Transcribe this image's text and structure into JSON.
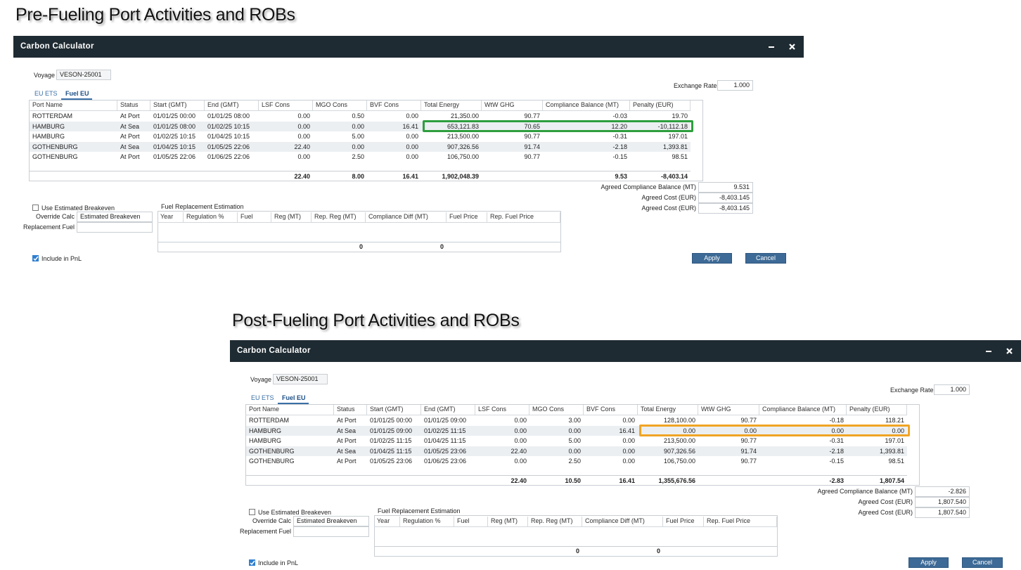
{
  "panels": [
    {
      "heading": "Pre-Fueling Port Activities and ROBs",
      "window_title": "Carbon Calculator",
      "voyage_label": "Voyage",
      "voyage": "VESON-25001",
      "exchange_rate_label": "Exchange Rate",
      "exchange_rate": "1.000",
      "tabs": [
        "EU ETS",
        "Fuel EU"
      ],
      "table": {
        "columns": [
          "Port Name",
          "Status",
          "Start (GMT)",
          "End (GMT)",
          "LSF Cons",
          "MGO Cons",
          "BVF Cons",
          "Total Energy",
          "WtW GHG",
          "Compliance Balance (MT)",
          "Penalty (EUR)"
        ],
        "rows": [
          [
            "ROTTERDAM",
            "At Port",
            "01/01/25 00:00",
            "01/01/25 08:00",
            "0.00",
            "0.50",
            "0.00",
            "21,350.00",
            "90.77",
            "-0.03",
            "19.70"
          ],
          [
            "HAMBURG",
            "At Sea",
            "01/01/25 08:00",
            "01/02/25 10:15",
            "0.00",
            "0.00",
            "16.41",
            "653,121.83",
            "70.65",
            "12.20",
            "-10,112.18"
          ],
          [
            "HAMBURG",
            "At Port",
            "01/02/25 10:15",
            "01/04/25 10:15",
            "0.00",
            "5.00",
            "0.00",
            "213,500.00",
            "90.77",
            "-0.31",
            "197.01"
          ],
          [
            "GOTHENBURG",
            "At Sea",
            "01/04/25 10:15",
            "01/05/25 22:06",
            "22.40",
            "0.00",
            "0.00",
            "907,326.56",
            "91.74",
            "-2.18",
            "1,393.81"
          ],
          [
            "GOTHENBURG",
            "At Port",
            "01/05/25 22:06",
            "01/06/25 22:06",
            "0.00",
            "2.50",
            "0.00",
            "106,750.00",
            "90.77",
            "-0.15",
            "98.51"
          ]
        ],
        "totals": [
          null,
          null,
          null,
          null,
          "22.40",
          "8.00",
          "16.41",
          "1,902,048.39",
          null,
          "9.53",
          "-8,403.14"
        ]
      },
      "highlight_color": "#2e9e3e",
      "agreed": [
        {
          "label": "Agreed Compliance Balance (MT)",
          "value": "9.531"
        },
        {
          "label": "Agreed Cost (EUR)",
          "value": "-8,403.145"
        },
        {
          "label": "Agreed Cost (EUR)",
          "value": "-8,403.145"
        }
      ],
      "use_estimated_breakeven": "Use Estimated Breakeven",
      "override_calc_label": "Override Calc",
      "override_calc": "Estimated Breakeven",
      "replacement_fuel_label": "Replacement Fuel",
      "fuel_replacement": {
        "title": "Fuel Replacement Estimation",
        "columns": [
          "Year",
          "Regulation %",
          "Fuel",
          "Reg (MT)",
          "Rep. Reg (MT)",
          "Compliance Diff (MT)",
          "Fuel Price",
          "Rep. Fuel Price"
        ],
        "totals": [
          null,
          null,
          null,
          null,
          "0",
          "0",
          null,
          null
        ]
      },
      "include_pnl": "Include in PnL",
      "buttons": [
        "Apply",
        "Cancel"
      ]
    },
    {
      "heading": "Post-Fueling Port Activities and ROBs",
      "window_title": "Carbon Calculator",
      "voyage_label": "Voyage",
      "voyage": "VESON-25001",
      "exchange_rate_label": "Exchange Rate",
      "exchange_rate": "1.000",
      "tabs": [
        "EU ETS",
        "Fuel EU"
      ],
      "table": {
        "columns": [
          "Port Name",
          "Status",
          "Start (GMT)",
          "End (GMT)",
          "LSF Cons",
          "MGO Cons",
          "BVF Cons",
          "Total Energy",
          "WtW GHG",
          "Compliance Balance (MT)",
          "Penalty (EUR)"
        ],
        "rows": [
          [
            "ROTTERDAM",
            "At Port",
            "01/01/25 00:00",
            "01/01/25 09:00",
            "0.00",
            "3.00",
            "0.00",
            "128,100.00",
            "90.77",
            "-0.18",
            "118.21"
          ],
          [
            "HAMBURG",
            "At Sea",
            "01/01/25 09:00",
            "01/02/25 11:15",
            "0.00",
            "0.00",
            "16.41",
            "0.00",
            "0.00",
            "0.00",
            "0.00"
          ],
          [
            "HAMBURG",
            "At Port",
            "01/02/25 11:15",
            "01/04/25 11:15",
            "0.00",
            "5.00",
            "0.00",
            "213,500.00",
            "90.77",
            "-0.31",
            "197.01"
          ],
          [
            "GOTHENBURG",
            "At Sea",
            "01/04/25 11:15",
            "01/05/25 23:06",
            "22.40",
            "0.00",
            "0.00",
            "907,326.56",
            "91.74",
            "-2.18",
            "1,393.81"
          ],
          [
            "GOTHENBURG",
            "At Port",
            "01/05/25 23:06",
            "01/06/25 23:06",
            "0.00",
            "2.50",
            "0.00",
            "106,750.00",
            "90.77",
            "-0.15",
            "98.51"
          ]
        ],
        "totals": [
          null,
          null,
          null,
          null,
          "22.40",
          "10.50",
          "16.41",
          "1,355,676.56",
          null,
          "-2.83",
          "1,807.54"
        ]
      },
      "highlight_color": "#f0a424",
      "agreed": [
        {
          "label": "Agreed Compliance Balance (MT)",
          "value": "-2.826"
        },
        {
          "label": "Agreed Cost (EUR)",
          "value": "1,807.540"
        },
        {
          "label": "Agreed Cost (EUR)",
          "value": "1,807.540"
        }
      ],
      "use_estimated_breakeven": "Use Estimated Breakeven",
      "override_calc_label": "Override Calc",
      "override_calc": "Estimated Breakeven",
      "replacement_fuel_label": "Replacement Fuel",
      "fuel_replacement": {
        "title": "Fuel Replacement Estimation",
        "columns": [
          "Year",
          "Regulation %",
          "Fuel",
          "Reg (MT)",
          "Rep. Reg (MT)",
          "Compliance Diff (MT)",
          "Fuel Price",
          "Rep. Fuel Price"
        ],
        "totals": [
          null,
          null,
          null,
          null,
          "0",
          "0",
          null,
          null
        ]
      },
      "include_pnl": "Include in PnL",
      "buttons": [
        "Apply",
        "Cancel"
      ]
    }
  ]
}
